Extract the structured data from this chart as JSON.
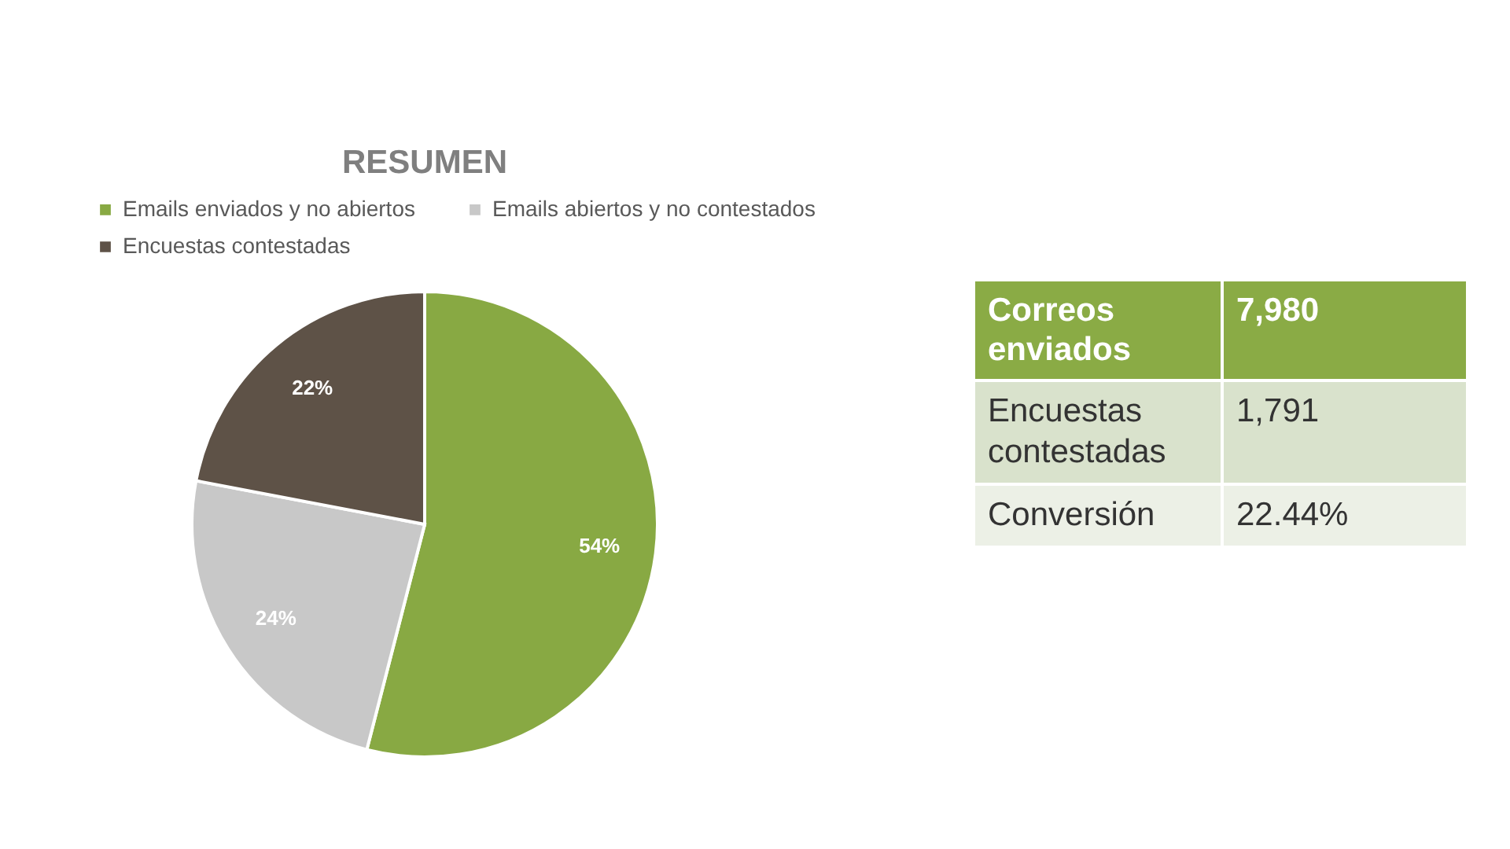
{
  "chart_data": [
    {
      "type": "pie",
      "title": "RESUMEN",
      "categories": [
        "Emails enviados y no abiertos",
        "Emails abiertos y no contestados",
        "Encuestas contestadas"
      ],
      "values": [
        54,
        24,
        22
      ],
      "colors": [
        "#88a943",
        "#c8c8c8",
        "#5e5247"
      ],
      "value_labels": [
        "54%",
        "24%",
        "22%"
      ],
      "legend": "top"
    },
    {
      "type": "other",
      "annotations": [
        "Correos enviados",
        "7,980",
        "Encuestas contestadas",
        "1,791",
        "Conversión",
        "22.44%"
      ]
    }
  ]
}
